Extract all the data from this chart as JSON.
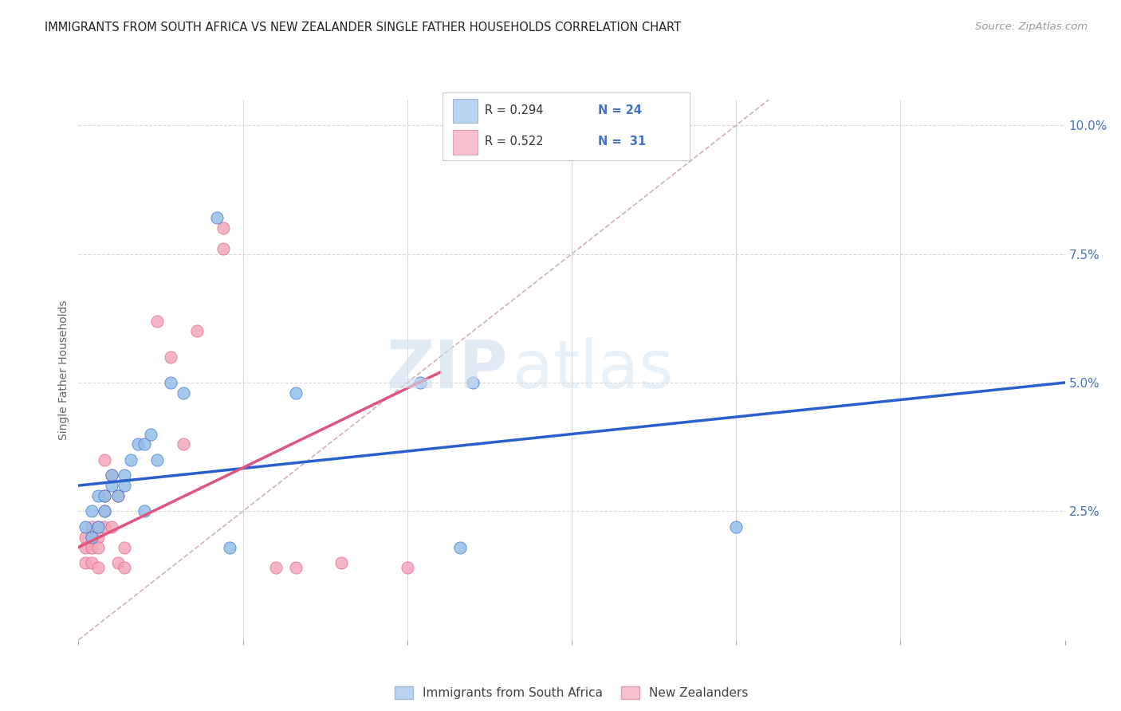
{
  "title": "IMMIGRANTS FROM SOUTH AFRICA VS NEW ZEALANDER SINGLE FATHER HOUSEHOLDS CORRELATION CHART",
  "source": "Source: ZipAtlas.com",
  "ylabel": "Single Father Households",
  "ytick_vals": [
    0.025,
    0.05,
    0.075,
    0.1
  ],
  "xlim": [
    0.0,
    0.15
  ],
  "ylim": [
    0.0,
    0.105
  ],
  "legend_label1": "Immigrants from South Africa",
  "legend_label2": "New Zealanders",
  "blue_scatter": [
    [
      0.001,
      0.022
    ],
    [
      0.002,
      0.02
    ],
    [
      0.002,
      0.025
    ],
    [
      0.003,
      0.022
    ],
    [
      0.003,
      0.028
    ],
    [
      0.004,
      0.025
    ],
    [
      0.004,
      0.028
    ],
    [
      0.005,
      0.03
    ],
    [
      0.005,
      0.032
    ],
    [
      0.006,
      0.028
    ],
    [
      0.007,
      0.032
    ],
    [
      0.007,
      0.03
    ],
    [
      0.008,
      0.035
    ],
    [
      0.009,
      0.038
    ],
    [
      0.01,
      0.025
    ],
    [
      0.01,
      0.038
    ],
    [
      0.011,
      0.04
    ],
    [
      0.012,
      0.035
    ],
    [
      0.014,
      0.05
    ],
    [
      0.016,
      0.048
    ],
    [
      0.021,
      0.082
    ],
    [
      0.023,
      0.018
    ],
    [
      0.033,
      0.048
    ],
    [
      0.052,
      0.05
    ],
    [
      0.06,
      0.05
    ],
    [
      0.1,
      0.022
    ],
    [
      0.058,
      0.018
    ]
  ],
  "pink_scatter": [
    [
      0.001,
      0.015
    ],
    [
      0.001,
      0.02
    ],
    [
      0.001,
      0.018
    ],
    [
      0.002,
      0.02
    ],
    [
      0.002,
      0.022
    ],
    [
      0.002,
      0.018
    ],
    [
      0.002,
      0.015
    ],
    [
      0.003,
      0.022
    ],
    [
      0.003,
      0.02
    ],
    [
      0.003,
      0.018
    ],
    [
      0.003,
      0.014
    ],
    [
      0.004,
      0.022
    ],
    [
      0.004,
      0.028
    ],
    [
      0.004,
      0.025
    ],
    [
      0.004,
      0.035
    ],
    [
      0.005,
      0.032
    ],
    [
      0.005,
      0.022
    ],
    [
      0.006,
      0.028
    ],
    [
      0.006,
      0.015
    ],
    [
      0.007,
      0.018
    ],
    [
      0.007,
      0.014
    ],
    [
      0.012,
      0.062
    ],
    [
      0.014,
      0.055
    ],
    [
      0.016,
      0.038
    ],
    [
      0.018,
      0.06
    ],
    [
      0.022,
      0.08
    ],
    [
      0.03,
      0.014
    ],
    [
      0.033,
      0.014
    ],
    [
      0.04,
      0.015
    ],
    [
      0.05,
      0.014
    ],
    [
      0.022,
      0.076
    ]
  ],
  "blue_line_x": [
    0.0,
    0.15
  ],
  "blue_line_y": [
    0.03,
    0.05
  ],
  "pink_line_x": [
    0.0,
    0.055
  ],
  "pink_line_y": [
    0.018,
    0.052
  ],
  "diagonal_line_x": [
    0.0,
    0.105
  ],
  "diagonal_line_y": [
    0.0,
    0.105
  ],
  "blue_color": "#92bfe8",
  "pink_color": "#f4a7b9",
  "blue_line_color": "#2b5fce",
  "pink_line_color": "#e05580",
  "diagonal_color": "#d0b0b8",
  "text_color": "#4472c4",
  "background_color": "#ffffff",
  "grid_color": "#d8d8d8",
  "legend_blue_fill": "#b8d4f0",
  "legend_pink_fill": "#f8c0cf",
  "scatter_size": 120
}
